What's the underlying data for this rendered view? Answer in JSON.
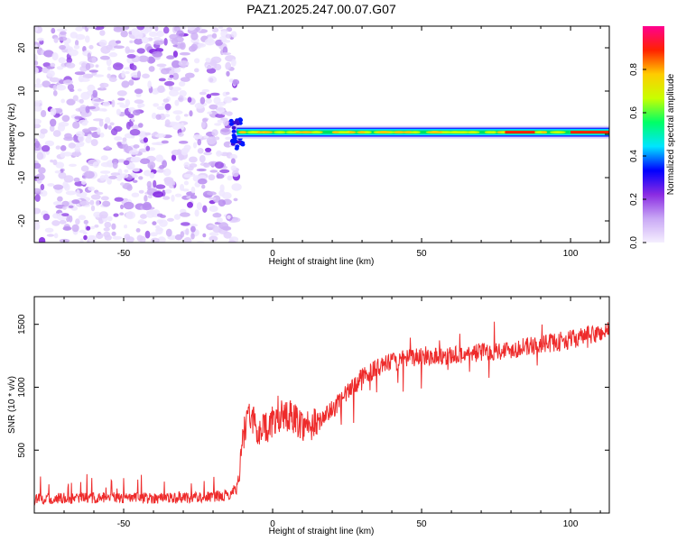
{
  "title": "PAZ1.2025.247.00.07.G07",
  "colors": {
    "snr_line": "#ee2b2b",
    "background": "#ffffff",
    "colormap": [
      "#f5efff",
      "#c9a8f5",
      "#8a2be2",
      "#0000ff",
      "#00e5ff",
      "#00ff66",
      "#c8ff00",
      "#ffcc00",
      "#ff2200",
      "#ff0090"
    ]
  },
  "chart_data": [
    {
      "type": "heatmap",
      "name": "spectrogram",
      "xlabel": "Height of straight line (km)",
      "ylabel": "Frequency (Hz)",
      "xlim": [
        -80,
        113
      ],
      "ylim": [
        -25,
        25
      ],
      "x_ticks": [
        -50,
        0,
        50,
        100
      ],
      "y_ticks": [
        20,
        10,
        0,
        -10,
        -20
      ],
      "noise_region_x": [
        -80,
        -12
      ],
      "signal_ridge": {
        "x_start": -12,
        "x_end": 113,
        "frequency": 0.5,
        "peak_amplitude_x": [
          78,
          88
        ]
      },
      "colorbar": {
        "label": "Normalized spectral amplitude",
        "range": [
          0,
          1
        ],
        "ticks": [
          "0.0",
          "0.2",
          "0.4",
          "0.6",
          "0.8"
        ]
      }
    },
    {
      "type": "line",
      "name": "snr",
      "xlabel": "Height of straight line (km)",
      "ylabel": "SNR (10 * v/v)",
      "xlim": [
        -80,
        113
      ],
      "ylim": [
        0,
        1720
      ],
      "x_ticks": [
        -50,
        0,
        50,
        100
      ],
      "y_ticks": [
        500,
        1000,
        1500
      ],
      "series": [
        {
          "x": [
            -80,
            -70,
            -60,
            -50,
            -40,
            -30,
            -20,
            -15,
            -12,
            -10,
            -8,
            -5,
            0,
            5,
            10,
            15,
            20,
            25,
            30,
            35,
            40,
            50,
            60,
            70,
            80,
            90,
            100,
            110,
            113
          ],
          "values": [
            110,
            115,
            120,
            120,
            120,
            125,
            130,
            140,
            200,
            600,
            800,
            650,
            720,
            800,
            700,
            720,
            820,
            950,
            1080,
            1150,
            1200,
            1250,
            1250,
            1280,
            1300,
            1340,
            1380,
            1430,
            1460
          ]
        }
      ]
    }
  ]
}
